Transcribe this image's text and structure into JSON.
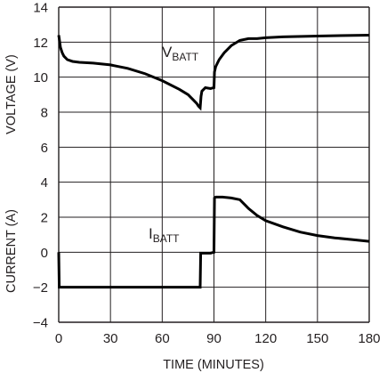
{
  "chart_data": {
    "type": "line",
    "title": "",
    "xlabel": "TIME (MINUTES)",
    "ylabel_top": "VOLTAGE (V)",
    "ylabel_bottom": "CURRENT (A)",
    "xlim": [
      0,
      180
    ],
    "ylim": [
      -4,
      14
    ],
    "x_ticks": [
      "0",
      "30",
      "60",
      "90",
      "120",
      "150",
      "180"
    ],
    "y_ticks": [
      "14",
      "12",
      "10",
      "8",
      "6",
      "4",
      "2",
      "0",
      "−2",
      "−4"
    ],
    "grid": true,
    "line_color": "#000000",
    "grid_color": "#231f20",
    "series": [
      {
        "name": "VBATT",
        "label_main": "V",
        "label_sub": "BATT",
        "x": [
          0,
          0.3,
          1,
          2,
          3,
          5,
          8,
          12,
          20,
          30,
          40,
          50,
          60,
          70,
          75,
          78,
          80,
          81,
          82,
          82.5,
          83,
          84,
          85,
          88,
          90,
          90.3,
          91,
          93,
          96,
          100,
          105,
          110,
          115,
          120,
          130,
          150,
          180
        ],
        "y": [
          12.4,
          12.2,
          11.7,
          11.4,
          11.2,
          11.0,
          10.9,
          10.85,
          10.8,
          10.7,
          10.5,
          10.2,
          9.8,
          9.3,
          9.0,
          8.7,
          8.5,
          8.35,
          8.25,
          8.9,
          9.2,
          9.3,
          9.4,
          9.35,
          9.4,
          10.3,
          10.6,
          11.0,
          11.4,
          11.8,
          12.1,
          12.2,
          12.2,
          12.25,
          12.3,
          12.35,
          12.4
        ]
      },
      {
        "name": "IBATT",
        "label_main": "I",
        "label_sub": "BATT",
        "x": [
          0,
          0.3,
          1,
          5,
          40,
          81,
          82,
          82.3,
          88,
          90,
          90.3,
          91,
          95,
          100,
          105,
          108,
          110,
          115,
          120,
          130,
          140,
          150,
          160,
          170,
          180
        ],
        "y": [
          0,
          -2,
          -2,
          -2,
          -2,
          -2,
          -2,
          -0.05,
          -0.05,
          0,
          3.1,
          3.15,
          3.15,
          3.1,
          3.0,
          2.7,
          2.5,
          2.1,
          1.8,
          1.45,
          1.15,
          0.95,
          0.82,
          0.72,
          0.62
        ]
      }
    ]
  }
}
